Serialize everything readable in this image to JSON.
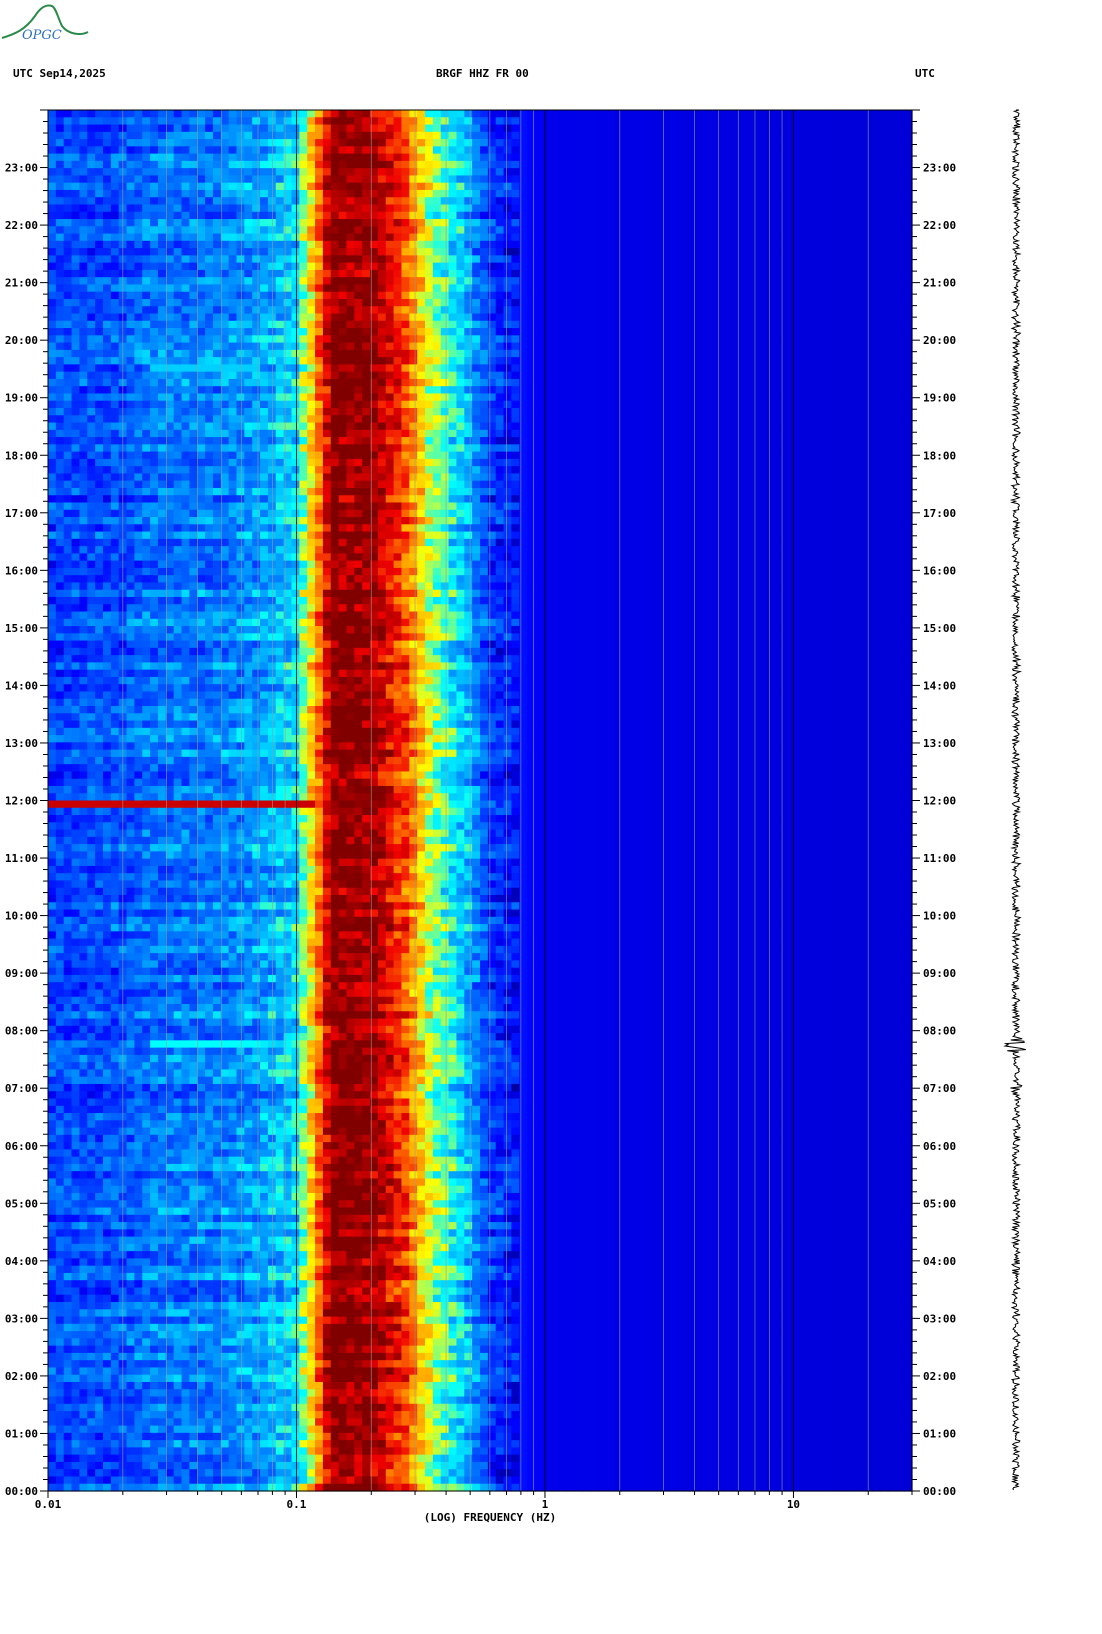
{
  "logo": {
    "text": "OPGC",
    "color": "#2a8a4a"
  },
  "header": {
    "left": "UTC  Sep14,2025",
    "center": "BRGF HHZ FR 00",
    "right": "UTC"
  },
  "colors": {
    "background": "#000088",
    "low": "#0000ff",
    "high": "#800000"
  },
  "chart_data": {
    "type": "heatmap",
    "title": "BRGF HHZ FR 00",
    "xlabel": "(LOG) FREQUENCY (HZ)",
    "ylabel": "UTC",
    "x_scale": "log",
    "xlim": [
      0.01,
      30
    ],
    "x_ticks": [
      {
        "value": 0.01,
        "label": "0.01"
      },
      {
        "value": 0.1,
        "label": "0.1"
      },
      {
        "value": 1,
        "label": "1"
      },
      {
        "value": 10,
        "label": "10"
      }
    ],
    "y_ticks": [
      "00:00",
      "01:00",
      "02:00",
      "03:00",
      "04:00",
      "05:00",
      "06:00",
      "07:00",
      "08:00",
      "09:00",
      "10:00",
      "11:00",
      "12:00",
      "13:00",
      "14:00",
      "15:00",
      "16:00",
      "17:00",
      "18:00",
      "19:00",
      "20:00",
      "21:00",
      "22:00",
      "23:00"
    ],
    "ylim_hours": [
      0,
      24
    ],
    "band_profile": [
      {
        "f": 0.01,
        "level": 0.22
      },
      {
        "f": 0.02,
        "level": 0.24
      },
      {
        "f": 0.025,
        "level": 0.28
      },
      {
        "f": 0.05,
        "level": 0.3
      },
      {
        "f": 0.07,
        "level": 0.34
      },
      {
        "f": 0.1,
        "level": 0.42
      },
      {
        "f": 0.12,
        "level": 0.72
      },
      {
        "f": 0.14,
        "level": 1.0
      },
      {
        "f": 0.2,
        "level": 0.98
      },
      {
        "f": 0.27,
        "level": 0.82
      },
      {
        "f": 0.35,
        "level": 0.55
      },
      {
        "f": 0.5,
        "level": 0.36
      },
      {
        "f": 0.6,
        "level": 0.2
      },
      {
        "f": 1,
        "level": 0.1
      },
      {
        "f": 30,
        "level": 0.08
      }
    ],
    "events": [
      {
        "hour": 11.95,
        "fmin": 0.01,
        "fmax": 0.12,
        "level": 0.92
      },
      {
        "hour": 7.8,
        "fmin": 0.025,
        "fmax": 0.07,
        "level": 0.45
      },
      {
        "hour": 19.5,
        "fmin": 0.025,
        "fmax": 0.07,
        "level": 0.4
      }
    ],
    "seismogram": "HHZ trace, 00:00 to 24:00"
  }
}
